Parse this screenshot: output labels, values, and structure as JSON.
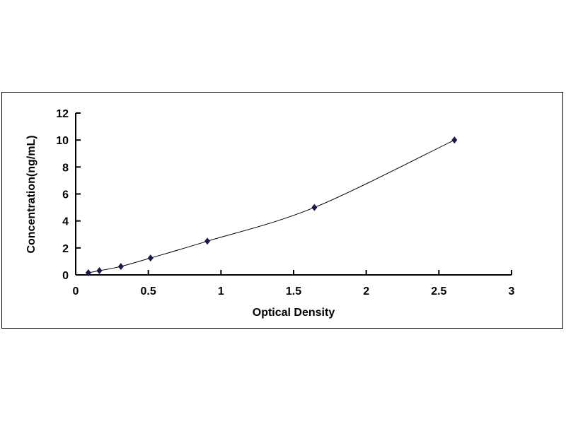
{
  "chart_data": {
    "type": "line",
    "title": "",
    "xlabel": "Optical Density",
    "ylabel": "Concentration(ng/mL)",
    "xlim": [
      0,
      3
    ],
    "ylim": [
      0,
      12
    ],
    "x_ticks": [
      "0",
      "0.5",
      "1",
      "1.5",
      "2",
      "2.5",
      "3"
    ],
    "y_ticks": [
      "0",
      "2",
      "4",
      "6",
      "8",
      "10",
      "12"
    ],
    "grid": false,
    "legend": "none",
    "marker": "diamond",
    "colors": {
      "line": "#000000",
      "marker": "#1a1a4a"
    },
    "series": [
      {
        "x": [
          0.087,
          0.163,
          0.311,
          0.515,
          0.906,
          1.643,
          2.607
        ],
        "y": [
          0.156,
          0.312,
          0.625,
          1.25,
          2.5,
          5,
          10
        ]
      }
    ]
  }
}
